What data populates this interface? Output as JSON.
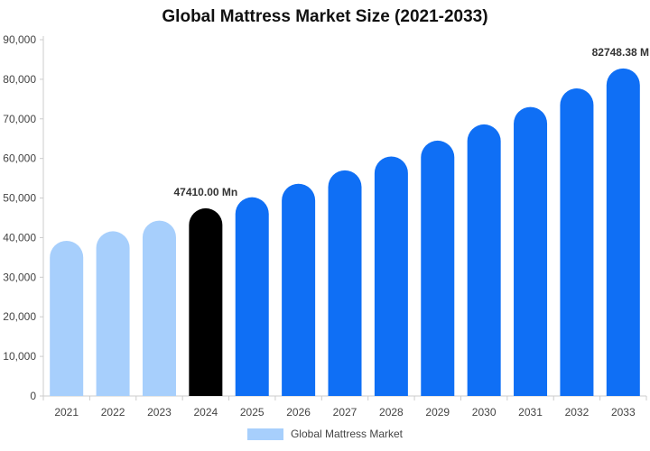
{
  "chart_data": {
    "type": "bar",
    "title": "Global Mattress Market Size (2021-2033)",
    "xlabel": "",
    "ylabel": "",
    "categories": [
      "2021",
      "2022",
      "2023",
      "2024",
      "2025",
      "2026",
      "2027",
      "2028",
      "2029",
      "2030",
      "2031",
      "2032",
      "2033"
    ],
    "series": [
      {
        "name": "Global Mattress Market",
        "values": [
          39200,
          41600,
          44300,
          47410.0,
          50200,
          53600,
          57000,
          60500,
          64500,
          68600,
          73000,
          77700,
          82748.38
        ]
      }
    ],
    "ylim": [
      0,
      90000
    ],
    "yticks": [
      "0",
      "10,000",
      "20,000",
      "30,000",
      "40,000",
      "50,000",
      "60,000",
      "70,000",
      "80,000",
      "90,000"
    ],
    "data_labels": [
      {
        "category": "2024",
        "text": "47410.00 Mn"
      },
      {
        "category": "2033",
        "text": "82748.38 M"
      }
    ],
    "colors": {
      "historical": "#a7cffc",
      "current": "#000000",
      "forecast": "#0f6ff5"
    },
    "bar_color_groups": [
      "historical",
      "historical",
      "historical",
      "current",
      "forecast",
      "forecast",
      "forecast",
      "forecast",
      "forecast",
      "forecast",
      "forecast",
      "forecast",
      "forecast"
    ],
    "legend_position": "bottom",
    "grid": false
  }
}
